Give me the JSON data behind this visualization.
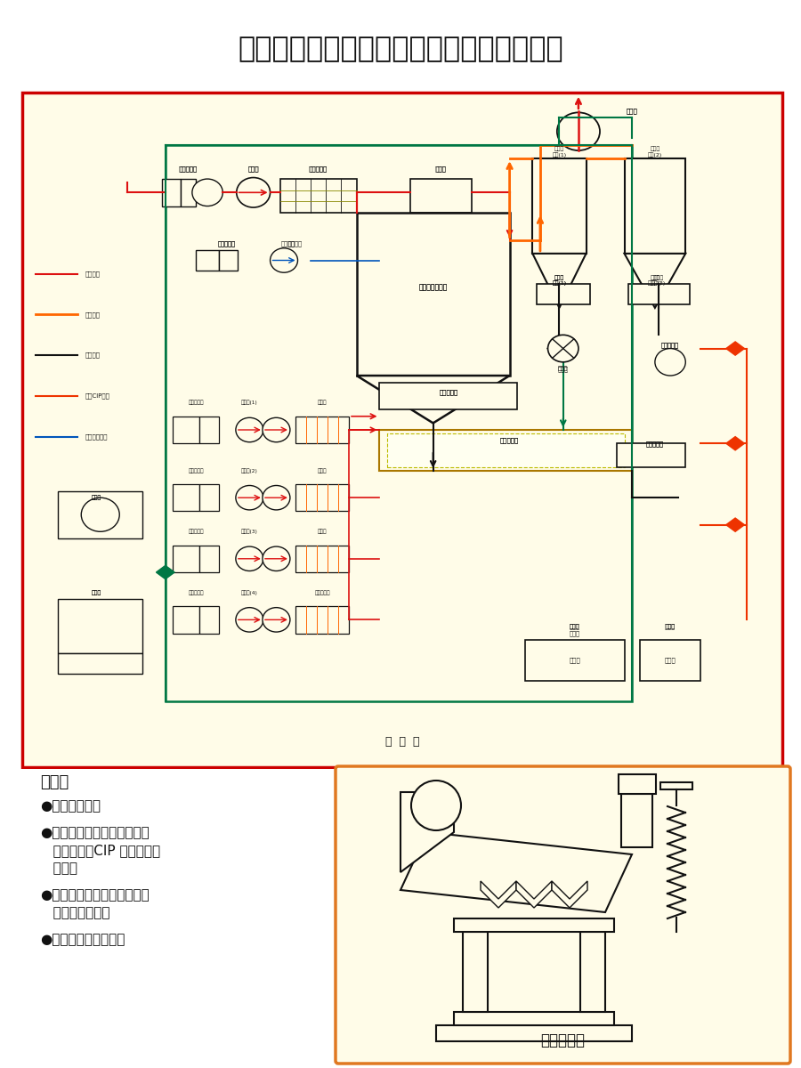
{
  "title": "立式压力噴雾上排风单级双旋风捕粉干燥塔",
  "bg_color_outer": "#ffffff",
  "bg_color_diagram": "#fffce8",
  "border_color_diagram": "#cc0000",
  "border_color_bottom_right": "#e07820",
  "flow_chart_label": "流  程  图",
  "features_title": "特点：",
  "feature1": "●立式压力噴雾",
  "feature2a": "●上排风，单级双旋风捕粉、",
  "feature2b": "   细粉附聚、CIP 清洗、三级",
  "feature2c": "   干燥。",
  "feature3a": "●热能利用率高、结构紧凑、",
  "feature3b": "   塔体安装层低。",
  "feature4": "●适用于奶粉、豆粉。",
  "vibration_label": "振动输粉机",
  "legend_air": "空气管线",
  "legend_hot": "热风管线",
  "legend_material": "物料管线",
  "legend_water": "水与CIP管线",
  "legend_compressed": "压缩空气管线"
}
